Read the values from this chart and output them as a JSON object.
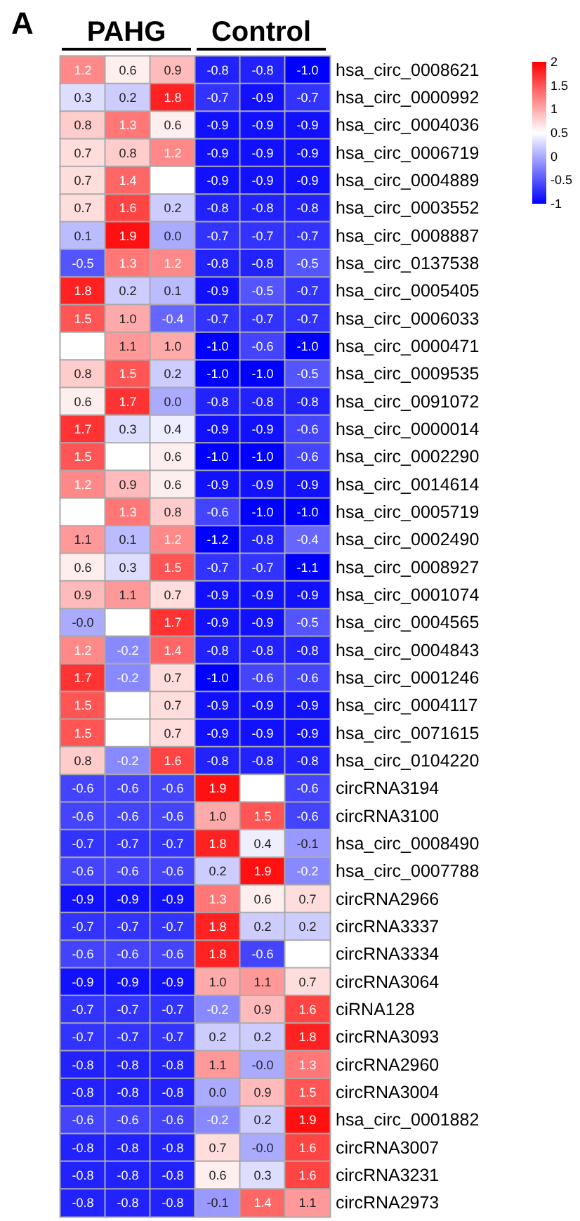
{
  "chart_data": {
    "type": "heatmap",
    "title": "A",
    "annotations": [
      "PAHG",
      "Control"
    ],
    "categories": [
      null,
      null,
      null,
      null,
      null,
      null
    ],
    "y_categories": [
      "hsa_circ_0008621",
      "hsa_circ_0000992",
      "hsa_circ_0004036",
      "hsa_circ_0006719",
      "hsa_circ_0004889",
      "hsa_circ_0003552",
      "hsa_circ_0008887",
      "hsa_circ_0137538",
      "hsa_circ_0005405",
      "hsa_circ_0006033",
      "hsa_circ_0000471",
      "hsa_circ_0009535",
      "hsa_circ_0091072",
      "hsa_circ_0000014",
      "hsa_circ_0002290",
      "hsa_circ_0014614",
      "hsa_circ_0005719",
      "hsa_circ_0002490",
      "hsa_circ_0008927",
      "hsa_circ_0001074",
      "hsa_circ_0004565",
      "hsa_circ_0004843",
      "hsa_circ_0001246",
      "hsa_circ_0004117",
      "hsa_circ_0071615",
      "hsa_circ_0104220",
      "circRNA3194",
      "circRNA3100",
      "hsa_circ_0008490",
      "hsa_circ_0007788",
      "circRNA2966",
      "circRNA3337",
      "circRNA3334",
      "circRNA3064",
      "ciRNA128",
      "circRNA3093",
      "circRNA2960",
      "circRNA3004",
      "hsa_circ_0001882",
      "circRNA3007",
      "circRNA3231",
      "circRNA2973"
    ],
    "cells": [
      [
        1.2,
        0.6,
        0.9,
        -0.8,
        -0.8,
        -1.0
      ],
      [
        0.3,
        0.2,
        1.8,
        -0.7,
        -0.9,
        -0.7
      ],
      [
        0.8,
        1.3,
        0.6,
        -0.9,
        -0.9,
        -0.9
      ],
      [
        0.7,
        0.8,
        1.2,
        -0.9,
        -0.9,
        -0.9
      ],
      [
        0.7,
        1.4,
        0.5,
        -0.9,
        -0.9,
        -0.9
      ],
      [
        0.7,
        1.6,
        0.2,
        -0.8,
        -0.8,
        -0.8
      ],
      [
        0.1,
        1.9,
        0.0,
        -0.7,
        -0.7,
        -0.7
      ],
      [
        -0.5,
        1.3,
        1.2,
        -0.8,
        -0.8,
        -0.5
      ],
      [
        1.8,
        0.2,
        0.1,
        -0.9,
        -0.5,
        -0.7
      ],
      [
        1.5,
        1.0,
        -0.4,
        -0.7,
        -0.7,
        -0.7
      ],
      [
        0.5,
        1.1,
        1.0,
        -1.0,
        -0.6,
        -1.0
      ],
      [
        0.8,
        1.5,
        0.2,
        -1.0,
        -1.0,
        -0.5
      ],
      [
        0.6,
        1.7,
        0.0,
        -0.8,
        -0.8,
        -0.8
      ],
      [
        1.7,
        0.3,
        0.4,
        -0.9,
        -0.9,
        -0.6
      ],
      [
        1.5,
        0.5,
        0.6,
        -1.0,
        -1.0,
        -0.6
      ],
      [
        1.2,
        0.9,
        0.6,
        -0.9,
        -0.9,
        -0.9
      ],
      [
        0.5,
        1.3,
        0.8,
        -0.6,
        -1.0,
        -1.0
      ],
      [
        1.1,
        0.1,
        1.2,
        -1.2,
        -0.8,
        -0.4
      ],
      [
        0.6,
        0.3,
        1.5,
        -0.7,
        -0.7,
        -1.1
      ],
      [
        0.9,
        1.1,
        0.7,
        -0.9,
        -0.9,
        -0.9
      ],
      [
        0.0,
        0.5,
        1.7,
        -0.9,
        -0.9,
        -0.5
      ],
      [
        1.2,
        -0.2,
        1.4,
        -0.8,
        -0.8,
        -0.8
      ],
      [
        1.7,
        -0.2,
        0.7,
        -1.0,
        -0.6,
        -0.6
      ],
      [
        1.5,
        0.5,
        0.7,
        -0.9,
        -0.9,
        -0.9
      ],
      [
        1.5,
        0.5,
        0.7,
        -0.9,
        -0.9,
        -0.9
      ],
      [
        0.8,
        -0.2,
        1.6,
        -0.8,
        -0.8,
        -0.8
      ],
      [
        -0.6,
        -0.6,
        -0.6,
        1.9,
        0.5,
        -0.6
      ],
      [
        -0.6,
        -0.6,
        -0.6,
        1.0,
        1.5,
        -0.6
      ],
      [
        -0.7,
        -0.7,
        -0.7,
        1.8,
        0.4,
        -0.1
      ],
      [
        -0.6,
        -0.6,
        -0.6,
        0.2,
        1.9,
        -0.2
      ],
      [
        -0.9,
        -0.9,
        -0.9,
        1.3,
        0.6,
        0.7
      ],
      [
        -0.7,
        -0.7,
        -0.7,
        1.8,
        0.2,
        0.2
      ],
      [
        -0.6,
        -0.6,
        -0.6,
        1.8,
        -0.6,
        0.5
      ],
      [
        -0.9,
        -0.9,
        -0.9,
        1.0,
        1.1,
        0.7
      ],
      [
        -0.7,
        -0.7,
        -0.7,
        -0.2,
        0.9,
        1.6
      ],
      [
        -0.7,
        -0.7,
        -0.7,
        0.2,
        0.2,
        1.8
      ],
      [
        -0.8,
        -0.8,
        -0.8,
        1.1,
        0.0,
        1.3
      ],
      [
        -0.8,
        -0.8,
        -0.8,
        0.0,
        0.9,
        1.5
      ],
      [
        -0.6,
        -0.6,
        -0.6,
        -0.2,
        0.2,
        1.9
      ],
      [
        -0.8,
        -0.8,
        -0.8,
        0.7,
        0.0,
        1.6
      ],
      [
        -0.8,
        -0.8,
        -0.8,
        0.6,
        0.3,
        1.6
      ],
      [
        -0.8,
        -0.8,
        -0.8,
        -0.1,
        1.4,
        1.1
      ]
    ],
    "cell_labels": [
      [
        "1.2",
        "0.6",
        "0.9",
        "-0.8",
        "-0.8",
        "-1.0"
      ],
      [
        "0.3",
        "0.2",
        "1.8",
        "-0.7",
        "-0.9",
        "-0.7"
      ],
      [
        "0.8",
        "1.3",
        "0.6",
        "-0.9",
        "-0.9",
        "-0.9"
      ],
      [
        "0.7",
        "0.8",
        "1.2",
        "-0.9",
        "-0.9",
        "-0.9"
      ],
      [
        "0.7",
        "1.4",
        null,
        "-0.9",
        "-0.9",
        "-0.9"
      ],
      [
        "0.7",
        "1.6",
        "0.2",
        "-0.8",
        "-0.8",
        "-0.8"
      ],
      [
        "0.1",
        "1.9",
        "0.0",
        "-0.7",
        "-0.7",
        "-0.7"
      ],
      [
        "-0.5",
        "1.3",
        "1.2",
        "-0.8",
        "-0.8",
        "-0.5"
      ],
      [
        "1.8",
        "0.2",
        "0.1",
        "-0.9",
        "-0.5",
        "-0.7"
      ],
      [
        "1.5",
        "1.0",
        "-0.4",
        "-0.7",
        "-0.7",
        "-0.7"
      ],
      [
        null,
        "1.1",
        "1.0",
        "-1.0",
        "-0.6",
        "-1.0"
      ],
      [
        "0.8",
        "1.5",
        "0.2",
        "-1.0",
        "-1.0",
        "-0.5"
      ],
      [
        "0.6",
        "1.7",
        "0.0",
        "-0.8",
        "-0.8",
        "-0.8"
      ],
      [
        "1.7",
        "0.3",
        "0.4",
        "-0.9",
        "-0.9",
        "-0.6"
      ],
      [
        "1.5",
        null,
        "0.6",
        "-1.0",
        "-1.0",
        "-0.6"
      ],
      [
        "1.2",
        "0.9",
        "0.6",
        "-0.9",
        "-0.9",
        "-0.9"
      ],
      [
        null,
        "1.3",
        "0.8",
        "-0.6",
        "-1.0",
        "-1.0"
      ],
      [
        "1.1",
        "0.1",
        "1.2",
        "-1.2",
        "-0.8",
        "-0.4"
      ],
      [
        "0.6",
        "0.3",
        "1.5",
        "-0.7",
        "-0.7",
        "-1.1"
      ],
      [
        "0.9",
        "1.1",
        "0.7",
        "-0.9",
        "-0.9",
        "-0.9"
      ],
      [
        "-0.0",
        null,
        "1.7",
        "-0.9",
        "-0.9",
        "-0.5"
      ],
      [
        "1.2",
        "-0.2",
        "1.4",
        "-0.8",
        "-0.8",
        "-0.8"
      ],
      [
        "1.7",
        "-0.2",
        "0.7",
        "-1.0",
        "-0.6",
        "-0.6"
      ],
      [
        "1.5",
        null,
        "0.7",
        "-0.9",
        "-0.9",
        "-0.9"
      ],
      [
        "1.5",
        null,
        "0.7",
        "-0.9",
        "-0.9",
        "-0.9"
      ],
      [
        "0.8",
        "-0.2",
        "1.6",
        "-0.8",
        "-0.8",
        "-0.8"
      ],
      [
        "-0.6",
        "-0.6",
        "-0.6",
        "1.9",
        null,
        "-0.6"
      ],
      [
        "-0.6",
        "-0.6",
        "-0.6",
        "1.0",
        "1.5",
        "-0.6"
      ],
      [
        "-0.7",
        "-0.7",
        "-0.7",
        "1.8",
        "0.4",
        "-0.1"
      ],
      [
        "-0.6",
        "-0.6",
        "-0.6",
        "0.2",
        "1.9",
        "-0.2"
      ],
      [
        "-0.9",
        "-0.9",
        "-0.9",
        "1.3",
        "0.6",
        "0.7"
      ],
      [
        "-0.7",
        "-0.7",
        "-0.7",
        "1.8",
        "0.2",
        "0.2"
      ],
      [
        "-0.6",
        "-0.6",
        "-0.6",
        "1.8",
        "-0.6",
        null
      ],
      [
        "-0.9",
        "-0.9",
        "-0.9",
        "1.0",
        "1.1",
        "0.7"
      ],
      [
        "-0.7",
        "-0.7",
        "-0.7",
        "-0.2",
        "0.9",
        "1.6"
      ],
      [
        "-0.7",
        "-0.7",
        "-0.7",
        "0.2",
        "0.2",
        "1.8"
      ],
      [
        "-0.8",
        "-0.8",
        "-0.8",
        "1.1",
        "-0.0",
        "1.3"
      ],
      [
        "-0.8",
        "-0.8",
        "-0.8",
        "0.0",
        "0.9",
        "1.5"
      ],
      [
        "-0.6",
        "-0.6",
        "-0.6",
        "-0.2",
        "0.2",
        "1.9"
      ],
      [
        "-0.8",
        "-0.8",
        "-0.8",
        "0.7",
        "-0.0",
        "1.6"
      ],
      [
        "-0.8",
        "-0.8",
        "-0.8",
        "0.6",
        "0.3",
        "1.6"
      ],
      [
        "-0.8",
        "-0.8",
        "-0.8",
        "-0.1",
        "1.4",
        "1.1"
      ]
    ],
    "data_labels": true,
    "clim": [
      -1,
      2
    ],
    "cticks": [
      -1,
      -0.5,
      0,
      0.5,
      1,
      1.5,
      2
    ]
  }
}
